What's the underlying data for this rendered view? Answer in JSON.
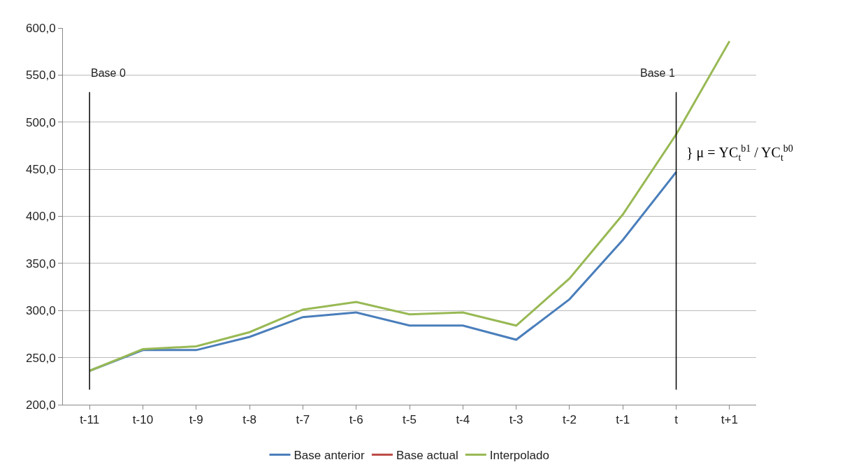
{
  "chart_data": {
    "type": "line",
    "categories": [
      "t-11",
      "t-10",
      "t-9",
      "t-8",
      "t-7",
      "t-6",
      "t-5",
      "t-4",
      "t-3",
      "t-2",
      "t-1",
      "t",
      "t+1"
    ],
    "series": [
      {
        "name": "Base anterior",
        "color": "#4a7ebb",
        "values": [
          236,
          258,
          258,
          272,
          293,
          298,
          284,
          284,
          269,
          312,
          375,
          447,
          null
        ]
      },
      {
        "name": "Base actual",
        "color": "#be4b48",
        "values": [
          null,
          null,
          null,
          null,
          null,
          null,
          null,
          null,
          null,
          null,
          null,
          null,
          null
        ]
      },
      {
        "name": "Interpolado",
        "color": "#98b954",
        "values": [
          236,
          259,
          262,
          277,
          301,
          309,
          296,
          298,
          284,
          334,
          402,
          487,
          586
        ]
      }
    ],
    "ylim": [
      200,
      600
    ],
    "yticks": [
      {
        "value": 200,
        "label": "200,0"
      },
      {
        "value": 250,
        "label": "250,0"
      },
      {
        "value": 300,
        "label": "300,0"
      },
      {
        "value": 350,
        "label": "350,0"
      },
      {
        "value": 400,
        "label": "400,0"
      },
      {
        "value": 450,
        "label": "450,0"
      },
      {
        "value": 500,
        "label": "500,0"
      },
      {
        "value": 550,
        "label": "550,0"
      },
      {
        "value": 600,
        "label": "600,0"
      }
    ],
    "ref_lines": [
      {
        "axis": "x",
        "value": "t-11",
        "label": "Base 0",
        "color": "#000000"
      },
      {
        "axis": "x",
        "value": "t",
        "label": "Base 1",
        "color": "#000000"
      }
    ],
    "annotations": [
      {
        "text": "} μ = YC$_{t}$$^{b1}$ / YC$_{t}$$^{b0}$",
        "x": "t",
        "y": 467
      }
    ],
    "grid": "y",
    "legend": "bottom",
    "marker": "none",
    "line_style": "solid"
  }
}
